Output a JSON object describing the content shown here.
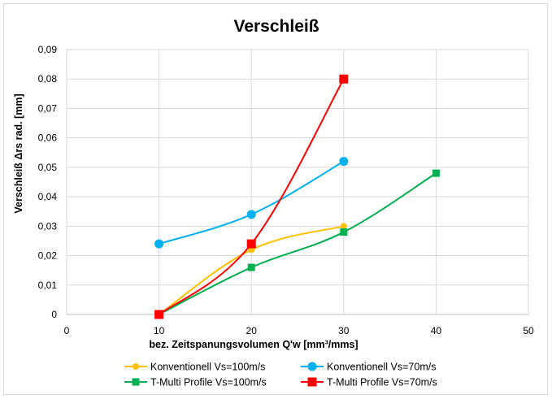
{
  "chart_data": {
    "type": "line",
    "title": "Verschleiß",
    "xlabel": "bez. Zeitspanungsvolumen Q'w  [mm³/mms]",
    "ylabel": "Verschleiß Δrs rad. [mm]",
    "xlim": [
      0,
      50
    ],
    "ylim": [
      0,
      0.09
    ],
    "x_ticks": [
      "0",
      "10",
      "20",
      "30",
      "40",
      "50"
    ],
    "y_ticks": [
      "0",
      "0,01",
      "0,02",
      "0,03",
      "0,04",
      "0,05",
      "0,06",
      "0,07",
      "0,08",
      "0,09"
    ],
    "grid": true,
    "legend_position": "bottom",
    "series": [
      {
        "name": "Konventionell  Vs=100m/s",
        "color": "#FFC000",
        "marker": "circle",
        "marker_size": "small",
        "x": [
          10,
          20,
          30
        ],
        "y": [
          0,
          0.022,
          0.03
        ]
      },
      {
        "name": "Konventionell  Vs=70m/s",
        "color": "#00B0F0",
        "marker": "circle",
        "marker_size": "large",
        "x": [
          10,
          20,
          30
        ],
        "y": [
          0.024,
          0.034,
          0.052
        ]
      },
      {
        "name": "T-Multi Profile  Vs=100m/s",
        "color": "#00B050",
        "marker": "square",
        "marker_size": "small",
        "x": [
          10,
          20,
          30,
          40
        ],
        "y": [
          0,
          0.016,
          0.028,
          0.048
        ]
      },
      {
        "name": "T-Multi Profile  Vs=70m/s",
        "color": "#FF0000",
        "marker": "square",
        "marker_size": "large",
        "x": [
          10,
          20,
          30
        ],
        "y": [
          0,
          0.024,
          0.08
        ]
      }
    ]
  }
}
